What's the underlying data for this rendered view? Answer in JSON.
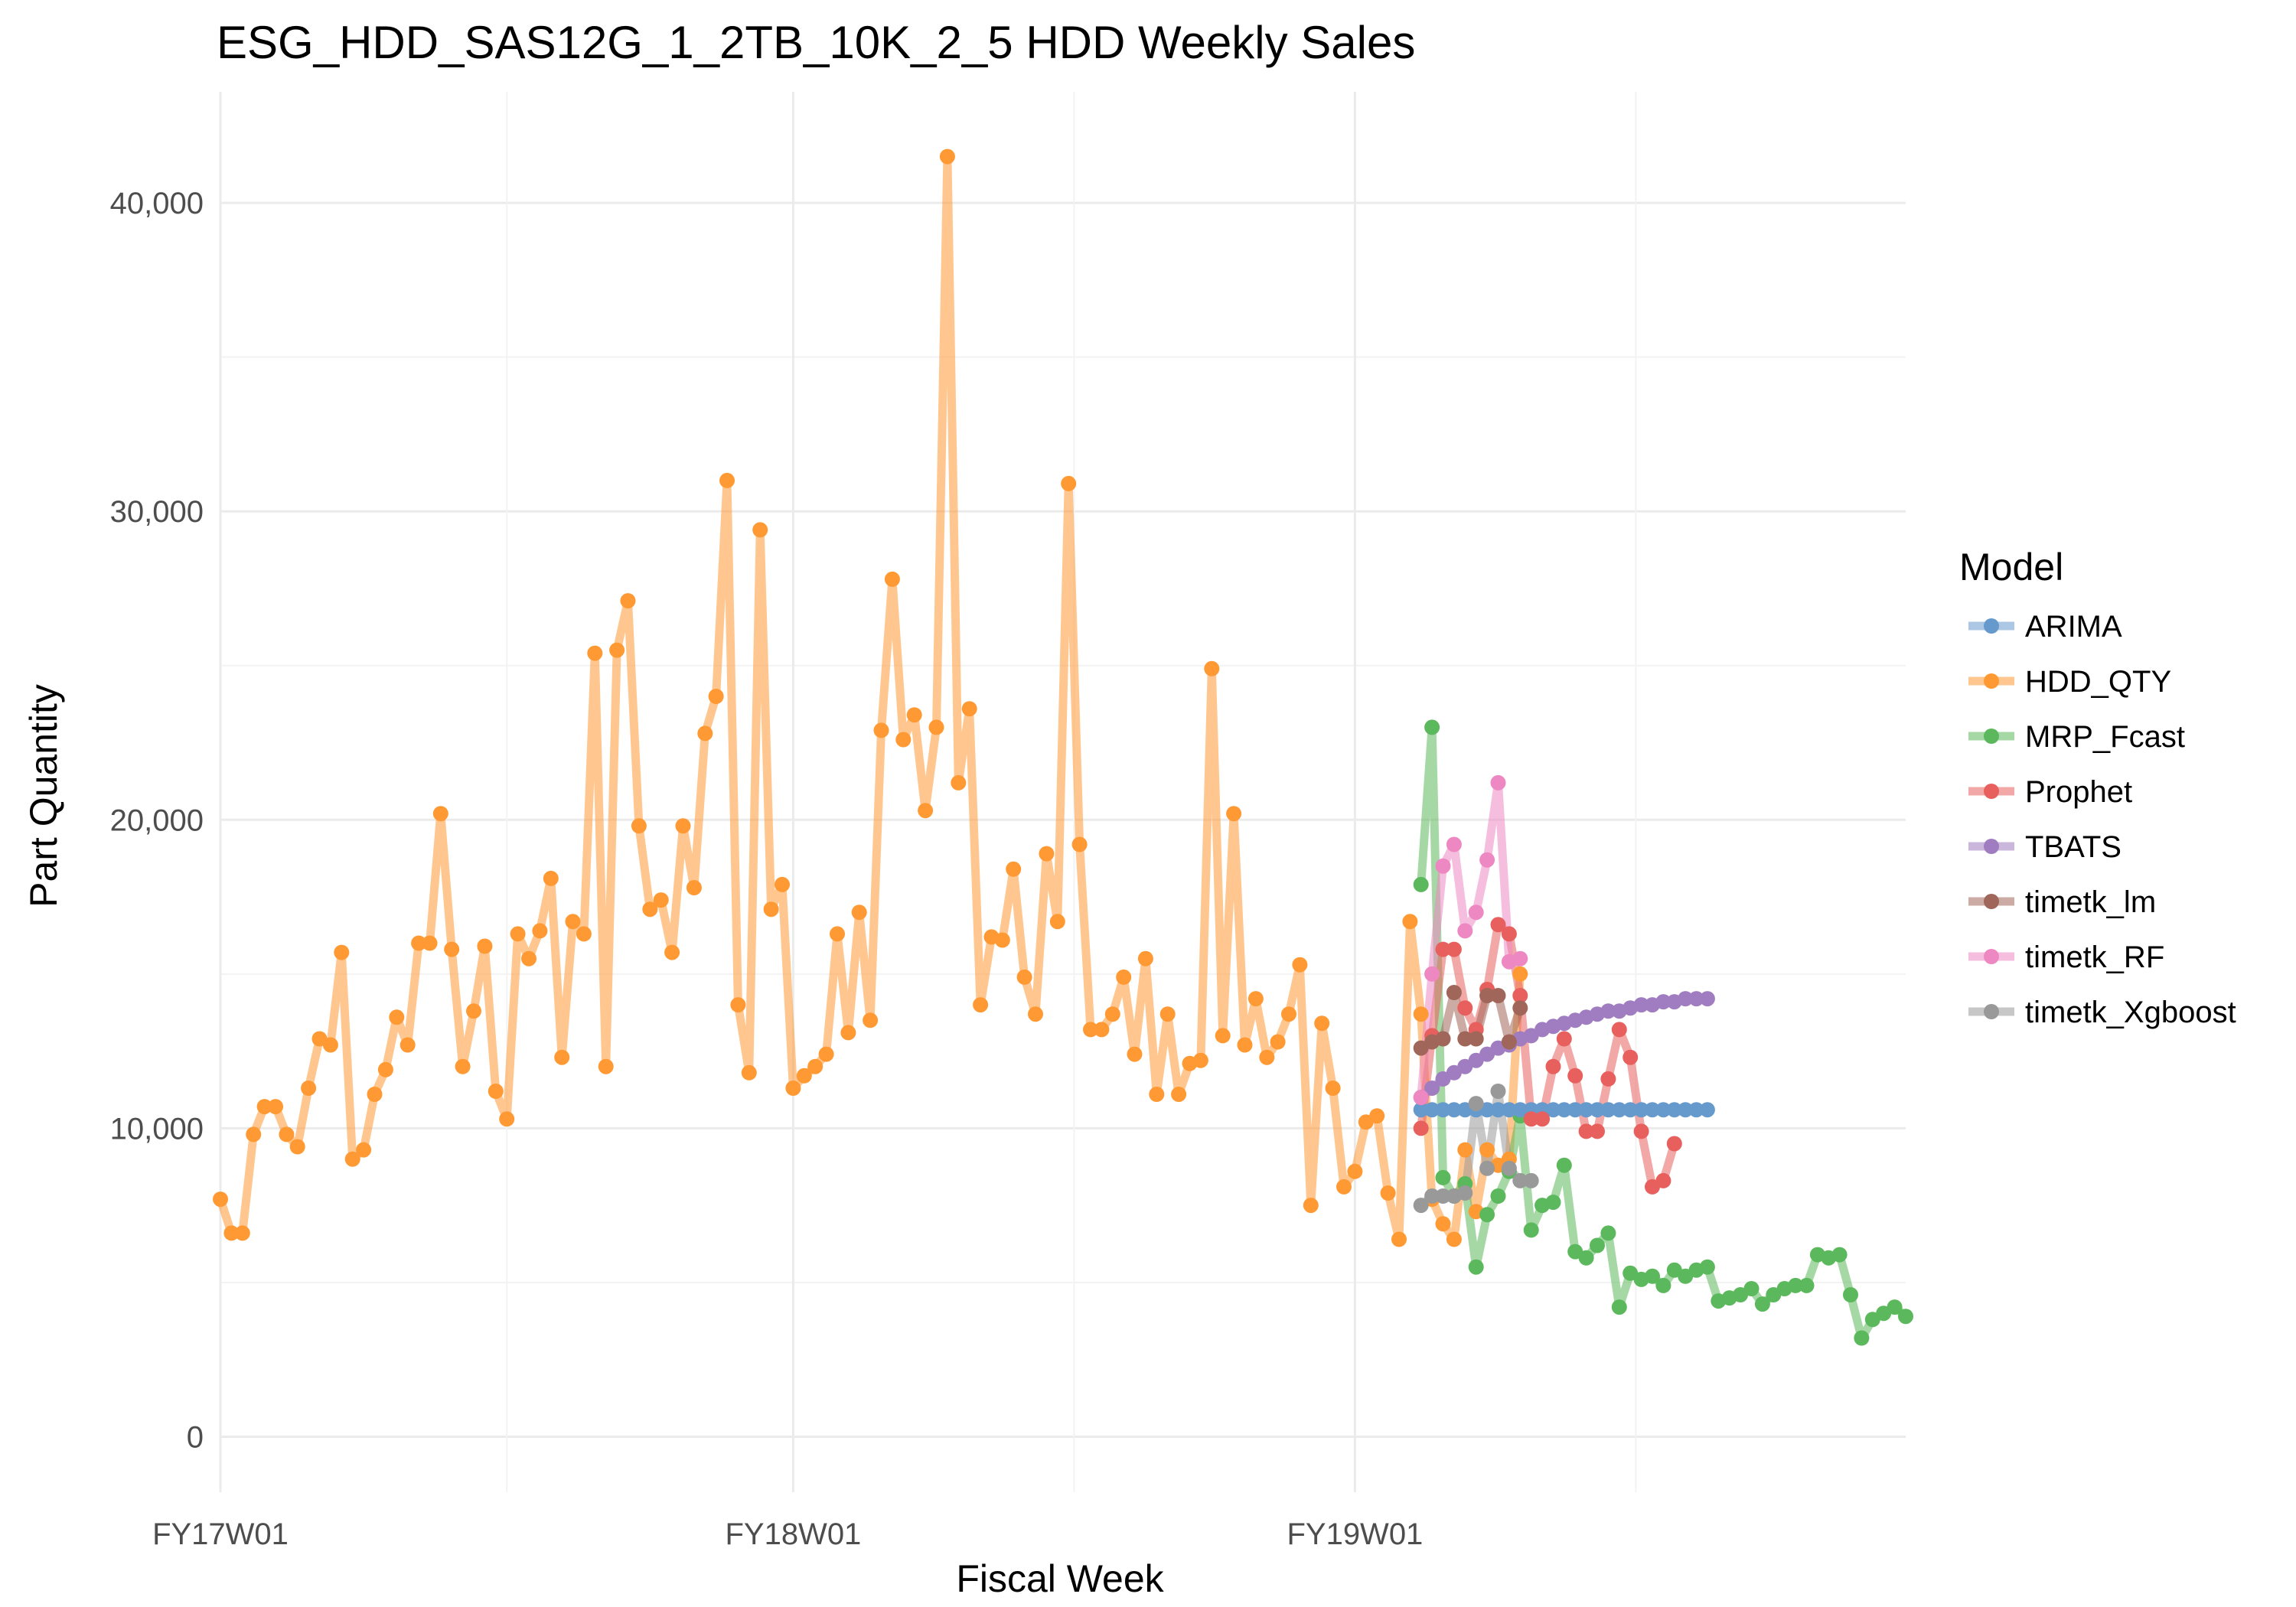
{
  "chart_data": {
    "type": "line",
    "title": "ESG_HDD_SAS12G_1_2TB_10K_2_5 HDD Weekly Sales",
    "xlabel": "Fiscal Week",
    "ylabel": "Part Quantity",
    "x_ticks": [
      "FY17W01",
      "FY18W01",
      "FY19W01"
    ],
    "x_tick_index": [
      0,
      52,
      103
    ],
    "x_range": [
      0,
      153
    ],
    "y_ticks": [
      0,
      10000,
      20000,
      30000,
      40000
    ],
    "y_tick_labels": [
      "0",
      "10,000",
      "20,000",
      "30,000",
      "40,000"
    ],
    "ylim": [
      -1800,
      43600
    ],
    "grid": true,
    "legend": {
      "title": "Model",
      "placement": "right"
    },
    "series": [
      {
        "name": "ARIMA",
        "color": "#6699cc",
        "x_start": 109,
        "values": [
          10600,
          10600,
          10600,
          10600,
          10600,
          10600,
          10600,
          10600,
          10600,
          10600,
          10600,
          10600,
          10600,
          10600,
          10600,
          10600,
          10600,
          10600,
          10600,
          10600,
          10600,
          10600,
          10600,
          10600,
          10600,
          10600,
          10600
        ]
      },
      {
        "name": "HDD_QTY",
        "color": "#ff9933",
        "x_start": 0,
        "values": [
          7700,
          6600,
          6600,
          9800,
          10700,
          10700,
          9800,
          9400,
          11300,
          12900,
          12700,
          15700,
          9000,
          9300,
          11100,
          11900,
          13600,
          12700,
          16000,
          16000,
          20200,
          15800,
          12000,
          13800,
          15900,
          11200,
          10300,
          16300,
          15500,
          16400,
          18100,
          12300,
          16700,
          16300,
          25400,
          12000,
          25500,
          27100,
          19800,
          17100,
          17400,
          15700,
          19800,
          17800,
          22800,
          24000,
          31000,
          14000,
          11800,
          29400,
          17100,
          17900,
          11300,
          11700,
          12000,
          12400,
          16300,
          13100,
          17000,
          13500,
          22900,
          27800,
          22600,
          23400,
          20300,
          23000,
          41500,
          21200,
          23600,
          14000,
          16200,
          16100,
          18400,
          14900,
          13700,
          18900,
          16700,
          30900,
          19200,
          13200,
          13200,
          13700,
          14900,
          12400,
          15500,
          11100,
          13700,
          11100,
          12100,
          12200,
          24900,
          13000,
          20200,
          12700,
          14200,
          12300,
          12800,
          13700,
          15300,
          7500,
          13400,
          11300,
          8100,
          8600,
          10200,
          10400,
          7900,
          6400,
          16700,
          13700,
          7700,
          6900,
          6400,
          9300,
          7300,
          9300,
          8800,
          9000,
          15000
        ]
      },
      {
        "name": "MRP_Fcast",
        "color": "#5cb85c",
        "x_start": 109,
        "values": [
          17900,
          23000,
          8400,
          7800,
          8200,
          5500,
          7200,
          7800,
          8600,
          10400,
          6700,
          7500,
          7600,
          8800,
          6000,
          5800,
          6200,
          6600,
          4200,
          5300,
          5100,
          5200,
          4900,
          5400,
          5200,
          5400,
          5500,
          4400,
          4500,
          4600,
          4800,
          4300,
          4600,
          4800,
          4900,
          4900,
          5900,
          5800,
          5900,
          4600,
          3200,
          3800,
          4000,
          4200,
          3900
        ]
      },
      {
        "name": "Prophet",
        "color": "#e8605d",
        "x_start": 109,
        "values": [
          10000,
          13000,
          15800,
          15800,
          13900,
          13200,
          14500,
          16600,
          16300,
          14300,
          10300,
          10300,
          12000,
          12900,
          11700,
          9900,
          9900,
          11600,
          13200,
          12300,
          9900,
          8100,
          8300,
          9500
        ]
      },
      {
        "name": "TBATS",
        "color": "#a07cc0",
        "x_start": 109,
        "values": [
          11000,
          11300,
          11600,
          11800,
          12000,
          12200,
          12400,
          12600,
          12700,
          12900,
          13000,
          13200,
          13300,
          13400,
          13500,
          13600,
          13700,
          13800,
          13800,
          13900,
          14000,
          14000,
          14100,
          14100,
          14200,
          14200,
          14200
        ]
      },
      {
        "name": "timetk_lm",
        "color": "#a0665a",
        "x_start": 109,
        "values": [
          12600,
          12800,
          12900,
          14400,
          12900,
          12900,
          14300,
          14300,
          12800,
          13900
        ]
      },
      {
        "name": "timetk_RF",
        "color": "#ee88c2",
        "x_start": 109,
        "values": [
          11000,
          15000,
          18500,
          19200,
          16400,
          17000,
          18700,
          21200,
          15400,
          15500
        ]
      },
      {
        "name": "timetk_Xgboost",
        "color": "#999999",
        "x_start": 109,
        "values": [
          7500,
          7800,
          7800,
          7800,
          7900,
          10800,
          8700,
          11200,
          8700,
          8300,
          8300
        ]
      }
    ]
  }
}
